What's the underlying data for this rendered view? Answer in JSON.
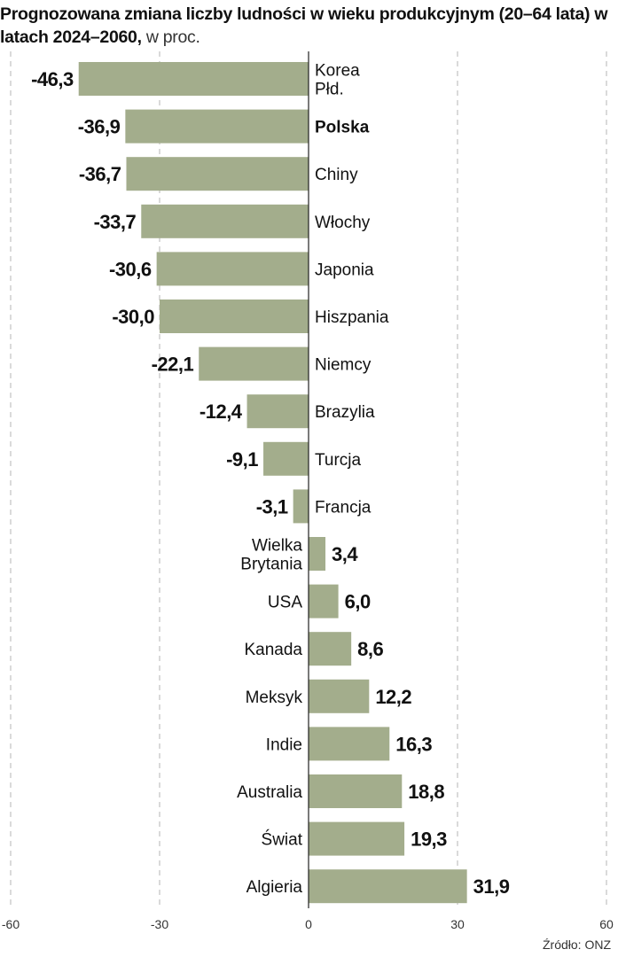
{
  "chart_data": {
    "type": "bar",
    "orientation": "horizontal",
    "title": "Prognozowana zmiana liczby ludności w wieku produkcyjnym (20–64 lata) w latach 2024–2060,",
    "unit_label": "w proc.",
    "categories": [
      "Korea\nPłd.",
      "Polska",
      "Chiny",
      "Włochy",
      "Japonia",
      "Hiszpania",
      "Niemcy",
      "Brazylia",
      "Turcja",
      "Francja",
      "Wielka\nBrytania",
      "USA",
      "Kanada",
      "Meksyk",
      "Indie",
      "Australia",
      "Świat",
      "Algieria"
    ],
    "values": [
      -46.3,
      -36.9,
      -36.7,
      -33.7,
      -30.6,
      -30.0,
      -22.1,
      -12.4,
      -9.1,
      -3.1,
      3.4,
      6.0,
      8.6,
      12.2,
      16.3,
      18.8,
      19.3,
      31.9
    ],
    "value_labels": [
      "-46,3",
      "-36,9",
      "-36,7",
      "-33,7",
      "-30,6",
      "-30,0",
      "-22,1",
      "-12,4",
      "-9,1",
      "-3,1",
      "3,4",
      "6,0",
      "8,6",
      "12,2",
      "16,3",
      "18,8",
      "19,3",
      "31,9"
    ],
    "highlight": "Polska",
    "xlim": [
      -60,
      60
    ],
    "xticks": [
      -60,
      -30,
      0,
      30,
      60
    ],
    "xtick_labels": [
      "-60",
      "-30",
      "0",
      "30",
      "60"
    ],
    "grid": true,
    "bar_color": "#a3ad8c",
    "xlabel": "",
    "ylabel": ""
  },
  "source": "Źródło: ONZ"
}
